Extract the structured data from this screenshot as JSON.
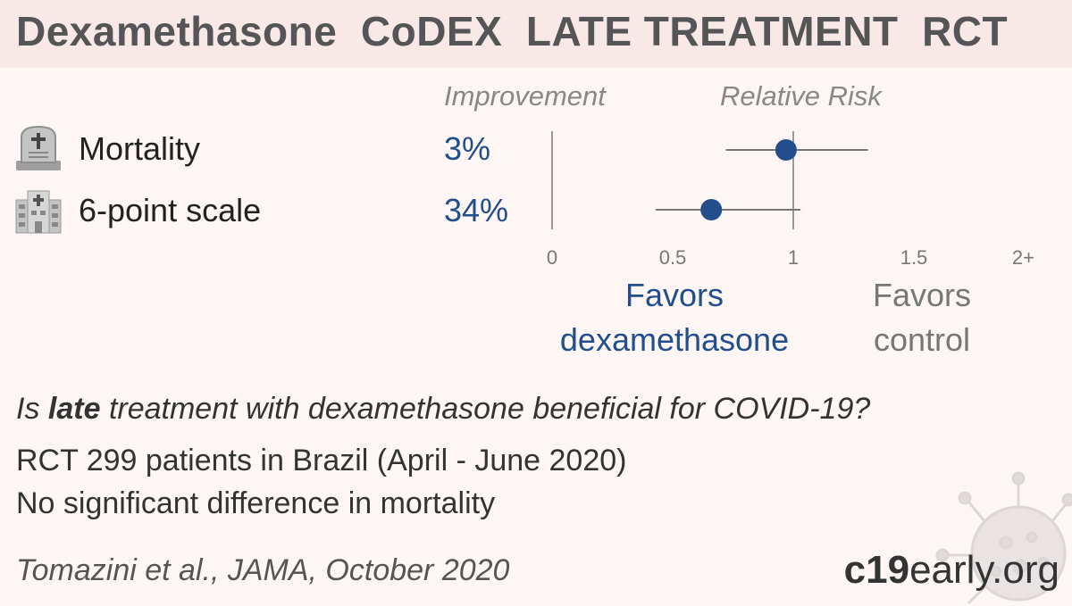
{
  "title": "Dexamethasone  CoDEX  LATE TREATMENT  RCT",
  "headers": {
    "improvement": "Improvement",
    "relative_risk": "Relative Risk"
  },
  "outcomes": [
    {
      "label": "Mortality",
      "improvement": "3%",
      "icon": "tombstone-icon"
    },
    {
      "label": "6-point scale",
      "improvement": "34%",
      "icon": "hospital-icon"
    }
  ],
  "favors": {
    "treatment_line1": "Favors",
    "treatment_line2": "dexamethasone",
    "control_line1": "Favors",
    "control_line2": "control"
  },
  "question_prefix": "Is ",
  "question_bold": "late",
  "question_suffix": " treatment with dexamethasone beneficial for COVID-19?",
  "info_lines": [
    "RCT 299 patients in Brazil (April - June 2020)",
    "No significant difference in mortality"
  ],
  "citation": "Tomazini et al., JAMA, October 2020",
  "brand": {
    "bold": "c19",
    "rest": "early.org"
  },
  "colors": {
    "accent": "#234e8c",
    "title_bg": "#f8e8e6",
    "background": "#fdf6f5"
  },
  "chart_data": {
    "type": "forest",
    "xlabel": "",
    "ylabel": "",
    "xlim": [
      0,
      2
    ],
    "ticks": [
      0,
      0.5,
      1,
      1.5,
      2
    ],
    "tick_labels": [
      "0",
      "0.5",
      "1",
      "1.5",
      "2+"
    ],
    "rows": [
      {
        "name": "Mortality",
        "rr": 0.97,
        "ci_low": 0.72,
        "ci_high": 1.31
      },
      {
        "name": "6-point scale",
        "rr": 0.66,
        "ci_low": 0.43,
        "ci_high": 1.03
      }
    ]
  }
}
